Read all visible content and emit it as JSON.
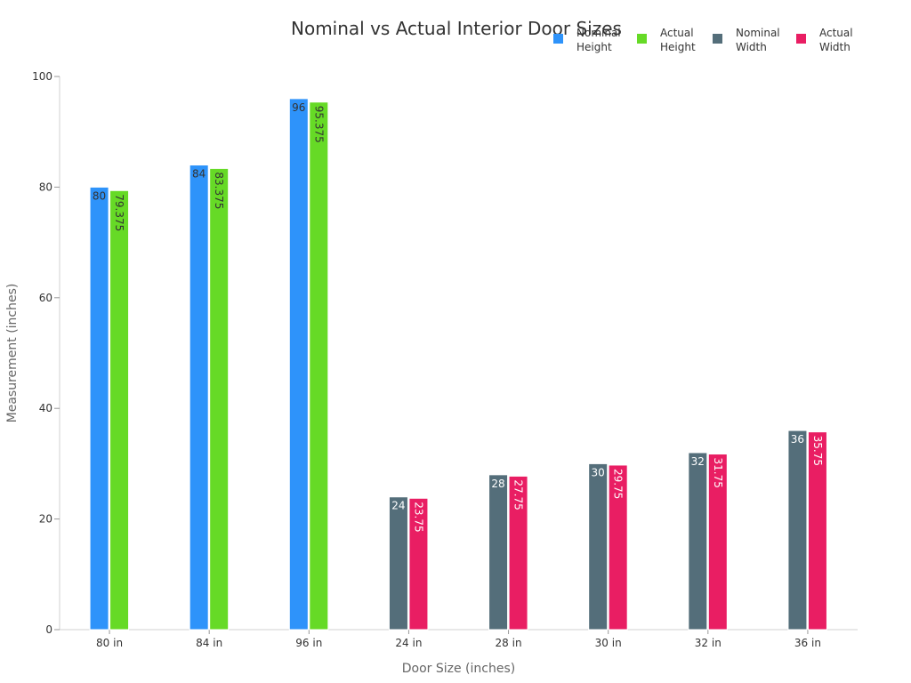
{
  "chart_data": {
    "type": "bar",
    "title": "Nominal vs Actual Interior Door Sizes",
    "xlabel": "Door Size (inches)",
    "ylabel": "Measurement (inches)",
    "ylim": [
      0,
      100
    ],
    "yticks": [
      0,
      20,
      40,
      60,
      80,
      100
    ],
    "grid": false,
    "legend_position": "top-right",
    "categories": [
      "80 in",
      "84 in",
      "96 in",
      "24 in",
      "28 in",
      "30 in",
      "32 in",
      "36 in"
    ],
    "series": [
      {
        "name": "Nominal Height",
        "legend_lines": [
          "Nominal",
          "Height"
        ],
        "color": "#2e93fa",
        "values": [
          80,
          84,
          96,
          null,
          null,
          null,
          null,
          null
        ]
      },
      {
        "name": "Actual Height",
        "legend_lines": [
          "Actual",
          "Height"
        ],
        "color": "#66da26",
        "values": [
          79.375,
          83.375,
          95.375,
          null,
          null,
          null,
          null,
          null
        ]
      },
      {
        "name": "Nominal Width",
        "legend_lines": [
          "Nominal",
          "Width"
        ],
        "color": "#546e7a",
        "values": [
          null,
          null,
          null,
          24,
          28,
          30,
          32,
          36
        ]
      },
      {
        "name": "Actual Width",
        "legend_lines": [
          "Actual",
          "Width"
        ],
        "color": "#e91e63",
        "values": [
          null,
          null,
          null,
          23.75,
          27.75,
          29.75,
          31.75,
          35.75
        ]
      }
    ]
  }
}
